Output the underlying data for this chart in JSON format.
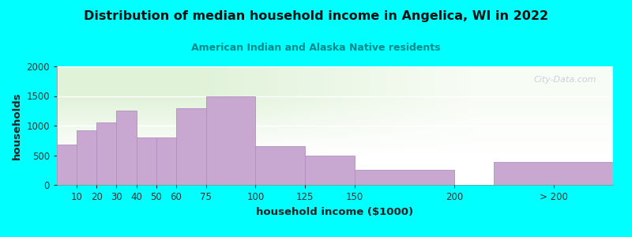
{
  "title": "Distribution of median household income in Angelica, WI in 2022",
  "subtitle": "American Indian and Alaska Native residents",
  "xlabel": "household income ($1000)",
  "ylabel": "households",
  "background_color": "#00FFFF",
  "bar_color": "#c8a8d0",
  "bar_edge_color": "#b090c0",
  "title_color": "#111111",
  "subtitle_color": "#008888",
  "watermark": "City-Data.com",
  "values": [
    680,
    920,
    1050,
    1260,
    800,
    800,
    1290,
    1500,
    650,
    500,
    250,
    390
  ],
  "bar_widths": [
    10,
    10,
    10,
    10,
    10,
    15,
    25,
    25,
    25,
    25,
    50,
    60
  ],
  "bar_lefts": [
    0,
    10,
    20,
    30,
    40,
    50,
    60,
    75,
    100,
    125,
    150,
    220
  ],
  "xlim": [
    0,
    280
  ],
  "ylim": [
    0,
    2000
  ],
  "yticks": [
    0,
    500,
    1000,
    1500,
    2000
  ],
  "xtick_positions": [
    10,
    20,
    30,
    40,
    50,
    60,
    75,
    100,
    125,
    150,
    200,
    250
  ],
  "xtick_labels": [
    "10",
    "20",
    "30",
    "40",
    "50",
    "60",
    "75",
    "100",
    "125",
    "150",
    "200",
    "> 200"
  ]
}
